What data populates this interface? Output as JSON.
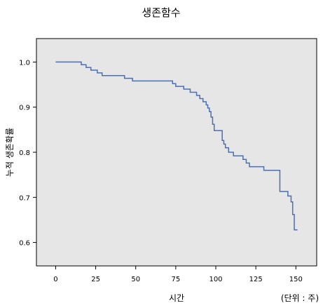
{
  "chart_data": {
    "type": "line",
    "title": "생존함수",
    "xlabel": "시간",
    "ylabel": "누적 생존확률",
    "unit_note": "(단위 : 주)",
    "xlim": [
      -12,
      163
    ],
    "ylim": [
      0.548,
      1.052
    ],
    "x_ticks": [
      0,
      25,
      50,
      75,
      100,
      125,
      150
    ],
    "y_ticks": [
      0.6,
      0.7,
      0.8,
      0.9,
      1.0
    ],
    "y_tick_labels": [
      "0.6",
      "0.7",
      "0.8",
      "0.9",
      "1.0"
    ],
    "grid": false,
    "line_color": "#4a6fb6",
    "plot_background": "#e6e6e6",
    "series": [
      {
        "step": true,
        "x": [
          0,
          16,
          19,
          22,
          26,
          29,
          43,
          48,
          73,
          75,
          80,
          84,
          88,
          90,
          92,
          94,
          95,
          96,
          97,
          98,
          99,
          100,
          104,
          105,
          106,
          108,
          111,
          117,
          119,
          121,
          130,
          140,
          145,
          147,
          148,
          149,
          151
        ],
        "y": [
          1.0,
          0.994,
          0.988,
          0.982,
          0.976,
          0.97,
          0.964,
          0.958,
          0.952,
          0.946,
          0.94,
          0.933,
          0.926,
          0.919,
          0.912,
          0.905,
          0.898,
          0.89,
          0.878,
          0.862,
          0.848,
          0.848,
          0.826,
          0.818,
          0.81,
          0.8,
          0.792,
          0.784,
          0.776,
          0.768,
          0.76,
          0.713,
          0.703,
          0.69,
          0.662,
          0.628,
          0.628
        ]
      }
    ]
  }
}
